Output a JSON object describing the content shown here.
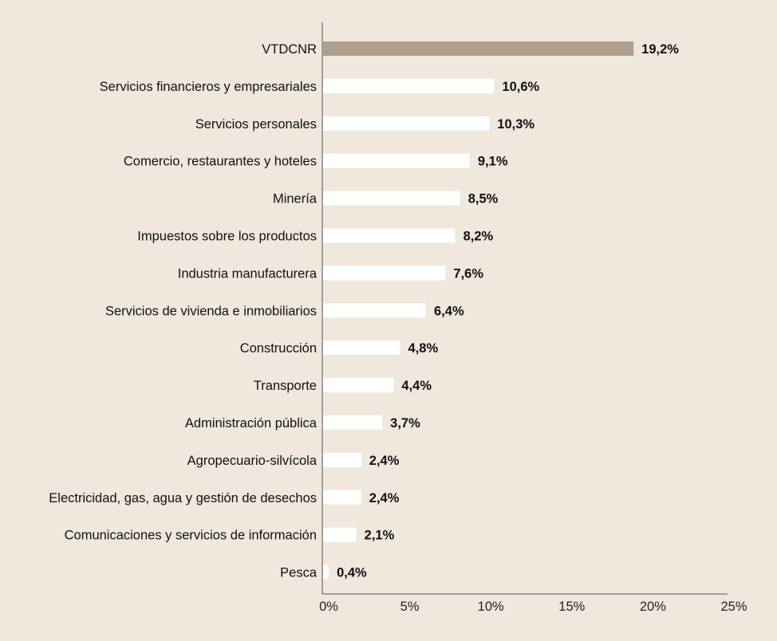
{
  "chart_data": {
    "type": "bar",
    "orientation": "horizontal",
    "title": "",
    "xlabel": "",
    "ylabel": "",
    "xlim": [
      0,
      25
    ],
    "grid": false,
    "categories": [
      "VTDCNR",
      "Servicios financieros y empresariales",
      "Servicios personales",
      "Comercio, restaurantes y hoteles",
      "Minería",
      "Impuestos sobre los productos",
      "Industria manufacturera",
      "Servicios de vivienda e inmobiliarios",
      "Construcción",
      "Transporte",
      "Administración pública",
      "Agropecuario-silvícola",
      "Electricidad, gas, agua y gestión de desechos",
      "Comunicaciones y servicios de información",
      "Pesca"
    ],
    "values": [
      19.2,
      10.6,
      10.3,
      9.1,
      8.5,
      8.2,
      7.6,
      6.4,
      4.8,
      4.4,
      3.7,
      2.4,
      2.4,
      2.1,
      0.4
    ],
    "value_labels": [
      "19,2%",
      "10,6%",
      "10,3%",
      "9,1%",
      "8,5%",
      "8,2%",
      "7,6%",
      "6,4%",
      "4,8%",
      "4,4%",
      "3,7%",
      "2,4%",
      "2,4%",
      "2,1%",
      "0,4%"
    ],
    "xticks": [
      0,
      5,
      10,
      15,
      20,
      25
    ],
    "xtick_labels": [
      "0%",
      "5%",
      "10%",
      "15%",
      "20%",
      "25%"
    ],
    "colors": {
      "highlight": "#b09e8c",
      "default": "#ffffff",
      "background": "#f0e7dd",
      "axis": "#555555"
    }
  }
}
